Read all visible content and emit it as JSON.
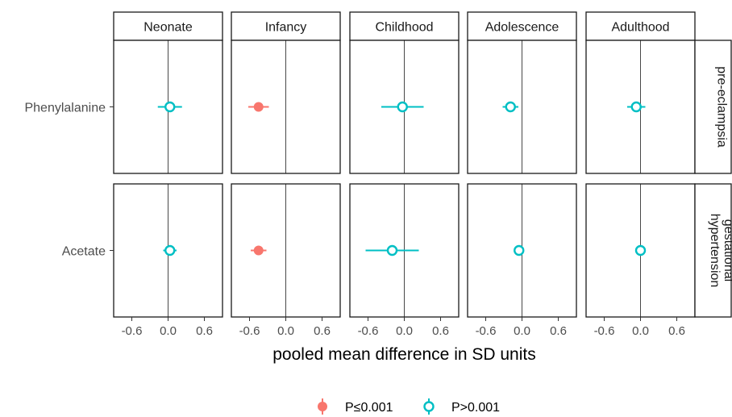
{
  "chart_data": {
    "type": "forest",
    "xlabel": "pooled mean difference in SD units",
    "xlim": [
      -0.9,
      0.9
    ],
    "xticks": [
      -0.6,
      0.0,
      0.6
    ],
    "xtick_labels": [
      "-0.6",
      "0.0",
      "0.6"
    ],
    "columns": [
      "Neonate",
      "Infancy",
      "Childhood",
      "Adolescence",
      "Adulthood"
    ],
    "rows": [
      {
        "facet": "pre-eclampsia",
        "facet_lines": [
          "pre-eclampsia"
        ],
        "label": "Phenylalanine"
      },
      {
        "facet": "gestational hypertension",
        "facet_lines": [
          "gestational",
          "hypertension"
        ],
        "label": "Acetate"
      }
    ],
    "legend": {
      "position": "bottom",
      "items": [
        {
          "key": "sig",
          "label": "P≤0.001",
          "color": "#F8766D",
          "shape": "filled-circle"
        },
        {
          "key": "nonsig",
          "label": "P>0.001",
          "color": "#00BFC4",
          "shape": "open-circle"
        }
      ]
    },
    "points": [
      {
        "row": "pre-eclampsia",
        "col": "Neonate",
        "estimate": 0.03,
        "low": -0.17,
        "high": 0.23,
        "group": "nonsig"
      },
      {
        "row": "pre-eclampsia",
        "col": "Infancy",
        "estimate": -0.45,
        "low": -0.62,
        "high": -0.28,
        "group": "sig"
      },
      {
        "row": "pre-eclampsia",
        "col": "Childhood",
        "estimate": -0.03,
        "low": -0.38,
        "high": 0.32,
        "group": "nonsig"
      },
      {
        "row": "pre-eclampsia",
        "col": "Adolescence",
        "estimate": -0.19,
        "low": -0.32,
        "high": -0.06,
        "group": "nonsig"
      },
      {
        "row": "pre-eclampsia",
        "col": "Adulthood",
        "estimate": -0.07,
        "low": -0.22,
        "high": 0.08,
        "group": "nonsig"
      },
      {
        "row": "gestational hypertension",
        "col": "Neonate",
        "estimate": 0.03,
        "low": -0.08,
        "high": 0.14,
        "group": "nonsig"
      },
      {
        "row": "gestational hypertension",
        "col": "Infancy",
        "estimate": -0.45,
        "low": -0.58,
        "high": -0.32,
        "group": "sig"
      },
      {
        "row": "gestational hypertension",
        "col": "Childhood",
        "estimate": -0.2,
        "low": -0.64,
        "high": 0.24,
        "group": "nonsig"
      },
      {
        "row": "gestational hypertension",
        "col": "Adolescence",
        "estimate": -0.05,
        "low": -0.13,
        "high": 0.03,
        "group": "nonsig"
      },
      {
        "row": "gestational hypertension",
        "col": "Adulthood",
        "estimate": 0.0,
        "low": -0.05,
        "high": 0.05,
        "group": "nonsig"
      }
    ]
  }
}
